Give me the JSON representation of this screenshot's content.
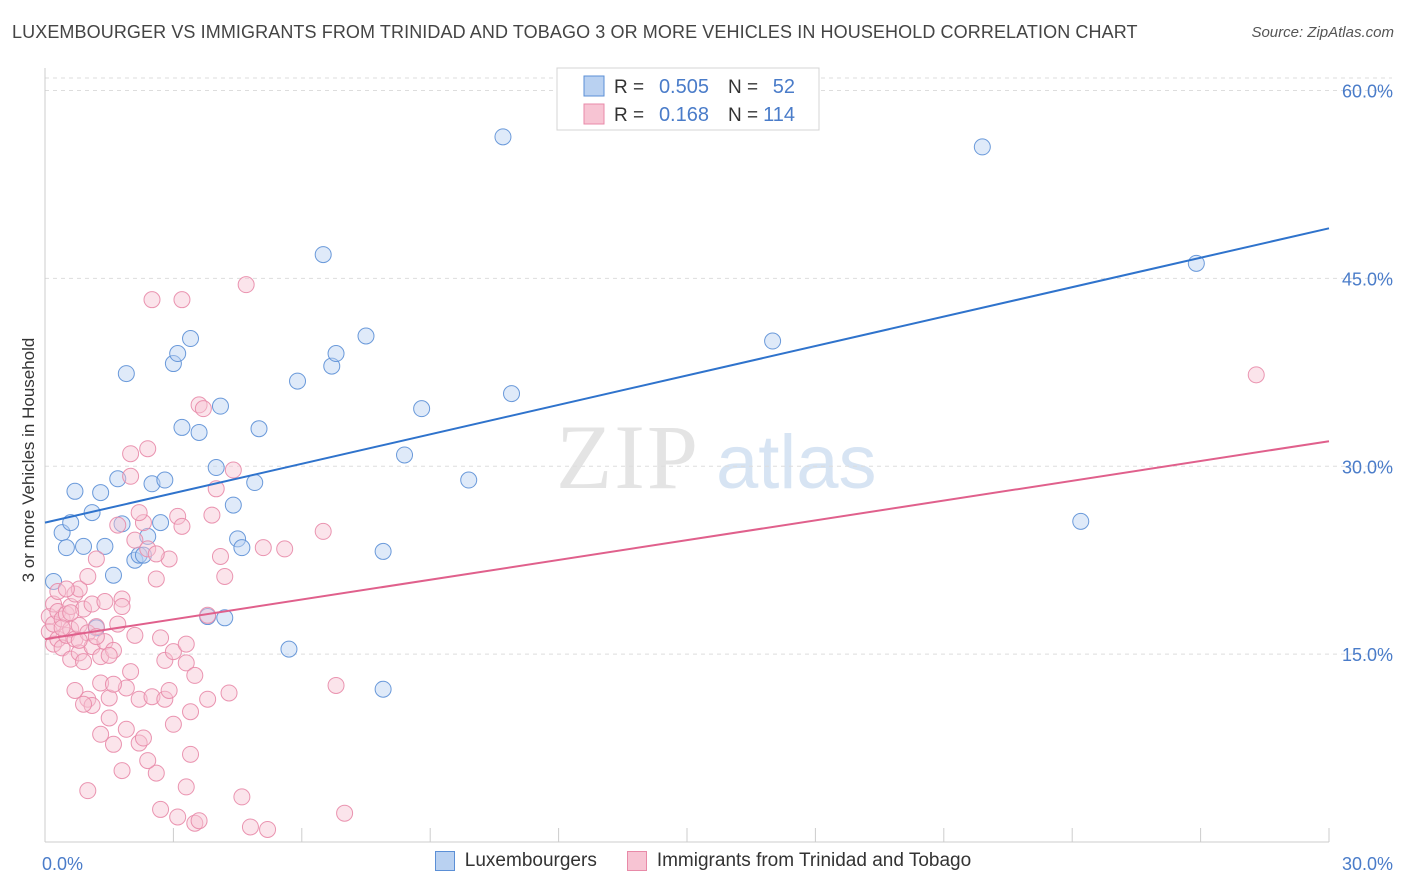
{
  "header": {
    "title": "LUXEMBOURGER VS IMMIGRANTS FROM TRINIDAD AND TOBAGO 3 OR MORE VEHICLES IN HOUSEHOLD CORRELATION CHART",
    "source": "Source: ZipAtlas.com"
  },
  "watermark": {
    "zip": "ZIP",
    "atlas": "atlas"
  },
  "legend_box": {
    "rows": [
      {
        "r_label": "R =",
        "r_value": "0.505",
        "n_label": "N =",
        "n_value": "52"
      },
      {
        "r_label": "R =",
        "r_value": "0.168",
        "n_label": "N =",
        "n_value": "114"
      }
    ]
  },
  "colors": {
    "blue": "#5b8fd6",
    "blue_fill": "#b9d1f1",
    "blue_line": "#2f73cc",
    "pink": "#e88aa8",
    "pink_fill": "#f7c4d3",
    "pink_line": "#e0608c",
    "axis_text": "#4a7cc9",
    "grid": "#dddddd"
  },
  "chart_data": {
    "type": "scatter",
    "ylabel": "3 or more Vehicles in Household",
    "xlim": [
      0,
      30
    ],
    "ylim": [
      0,
      61
    ],
    "x_tick_labels": [
      {
        "value": 0,
        "label": "0.0%"
      },
      {
        "value": 30,
        "label": "30.0%"
      }
    ],
    "y_tick_labels": [
      {
        "value": 15,
        "label": "15.0%"
      },
      {
        "value": 30,
        "label": "30.0%"
      },
      {
        "value": 45,
        "label": "45.0%"
      },
      {
        "value": 60,
        "label": "60.0%"
      }
    ],
    "x_minor_ticks": [
      0,
      3,
      6,
      9,
      12,
      15,
      18,
      21,
      24,
      27,
      30
    ],
    "grid": true,
    "legend": "bottom",
    "series": [
      {
        "name": "Luxembourgers",
        "r": 0.505,
        "n": 52,
        "trend": {
          "x": [
            0,
            30
          ],
          "y": [
            25.5,
            49.0
          ]
        },
        "points": [
          [
            0.2,
            20.8
          ],
          [
            0.4,
            24.7
          ],
          [
            0.5,
            23.5
          ],
          [
            0.6,
            25.5
          ],
          [
            0.7,
            28.0
          ],
          [
            0.9,
            23.6
          ],
          [
            1.1,
            26.3
          ],
          [
            1.3,
            27.9
          ],
          [
            1.4,
            23.6
          ],
          [
            1.6,
            21.3
          ],
          [
            1.7,
            29.0
          ],
          [
            1.8,
            25.4
          ],
          [
            1.9,
            37.4
          ],
          [
            2.1,
            22.5
          ],
          [
            2.2,
            22.9
          ],
          [
            2.4,
            24.4
          ],
          [
            2.5,
            28.6
          ],
          [
            2.7,
            25.5
          ],
          [
            2.8,
            28.9
          ],
          [
            3.0,
            38.2
          ],
          [
            3.1,
            39.0
          ],
          [
            3.2,
            33.1
          ],
          [
            3.4,
            40.2
          ],
          [
            3.6,
            32.7
          ],
          [
            3.8,
            18.0
          ],
          [
            4.0,
            29.9
          ],
          [
            4.1,
            34.8
          ],
          [
            4.2,
            17.9
          ],
          [
            4.4,
            26.9
          ],
          [
            4.5,
            24.2
          ],
          [
            4.6,
            23.5
          ],
          [
            4.9,
            28.7
          ],
          [
            5.0,
            33.0
          ],
          [
            5.7,
            15.4
          ],
          [
            5.9,
            36.8
          ],
          [
            6.5,
            46.9
          ],
          [
            6.7,
            38.0
          ],
          [
            6.8,
            39.0
          ],
          [
            7.5,
            40.4
          ],
          [
            7.9,
            23.2
          ],
          [
            7.9,
            12.2
          ],
          [
            8.4,
            30.9
          ],
          [
            8.8,
            34.6
          ],
          [
            9.9,
            28.9
          ],
          [
            10.7,
            56.3
          ],
          [
            10.9,
            35.8
          ],
          [
            17.0,
            40.0
          ],
          [
            21.9,
            55.5
          ],
          [
            24.2,
            25.6
          ],
          [
            26.9,
            46.2
          ],
          [
            1.2,
            17.1
          ],
          [
            2.3,
            22.9
          ]
        ]
      },
      {
        "name": "Immigrants from Trinidad and Tobago",
        "r": 0.168,
        "n": 114,
        "trend": {
          "x": [
            0,
            30
          ],
          "y": [
            16.2,
            32.0
          ]
        },
        "points": [
          [
            0.1,
            18.0
          ],
          [
            0.1,
            16.8
          ],
          [
            0.2,
            19.0
          ],
          [
            0.2,
            17.4
          ],
          [
            0.2,
            15.8
          ],
          [
            0.3,
            18.4
          ],
          [
            0.3,
            16.2
          ],
          [
            0.3,
            20.0
          ],
          [
            0.4,
            17.8
          ],
          [
            0.4,
            15.5
          ],
          [
            0.5,
            18.2
          ],
          [
            0.5,
            16.5
          ],
          [
            0.6,
            17.0
          ],
          [
            0.6,
            18.8
          ],
          [
            0.6,
            14.6
          ],
          [
            0.7,
            16.2
          ],
          [
            0.7,
            19.8
          ],
          [
            0.8,
            17.3
          ],
          [
            0.8,
            15.1
          ],
          [
            0.8,
            20.2
          ],
          [
            0.9,
            18.6
          ],
          [
            0.9,
            14.4
          ],
          [
            1.0,
            16.7
          ],
          [
            1.0,
            21.2
          ],
          [
            1.0,
            11.4
          ],
          [
            1.1,
            19.0
          ],
          [
            1.1,
            15.6
          ],
          [
            1.1,
            10.9
          ],
          [
            1.2,
            17.2
          ],
          [
            1.2,
            22.6
          ],
          [
            1.3,
            12.7
          ],
          [
            1.3,
            14.8
          ],
          [
            1.4,
            16.0
          ],
          [
            1.4,
            19.2
          ],
          [
            1.5,
            11.5
          ],
          [
            1.5,
            9.9
          ],
          [
            1.6,
            15.3
          ],
          [
            1.6,
            7.8
          ],
          [
            1.7,
            25.3
          ],
          [
            1.7,
            17.4
          ],
          [
            1.8,
            19.4
          ],
          [
            1.8,
            5.7
          ],
          [
            1.9,
            12.3
          ],
          [
            1.9,
            9.0
          ],
          [
            2.0,
            29.2
          ],
          [
            2.0,
            31.0
          ],
          [
            2.1,
            24.1
          ],
          [
            2.1,
            16.5
          ],
          [
            2.2,
            11.4
          ],
          [
            2.2,
            7.9
          ],
          [
            2.3,
            25.5
          ],
          [
            2.3,
            8.3
          ],
          [
            2.4,
            31.4
          ],
          [
            2.4,
            23.4
          ],
          [
            2.5,
            43.3
          ],
          [
            2.5,
            11.6
          ],
          [
            2.6,
            21.0
          ],
          [
            2.6,
            5.5
          ],
          [
            2.7,
            16.3
          ],
          [
            2.7,
            2.6
          ],
          [
            2.8,
            14.5
          ],
          [
            2.8,
            11.4
          ],
          [
            2.9,
            22.6
          ],
          [
            3.0,
            15.2
          ],
          [
            3.1,
            26.0
          ],
          [
            3.1,
            2.0
          ],
          [
            3.2,
            43.3
          ],
          [
            3.2,
            25.2
          ],
          [
            3.3,
            14.3
          ],
          [
            3.3,
            15.8
          ],
          [
            3.4,
            10.4
          ],
          [
            3.4,
            7.0
          ],
          [
            3.5,
            13.3
          ],
          [
            3.5,
            1.5
          ],
          [
            3.6,
            34.9
          ],
          [
            3.7,
            34.6
          ],
          [
            3.8,
            11.4
          ],
          [
            3.9,
            26.1
          ],
          [
            4.0,
            28.2
          ],
          [
            4.1,
            22.8
          ],
          [
            4.2,
            21.2
          ],
          [
            4.3,
            11.9
          ],
          [
            4.4,
            29.7
          ],
          [
            4.6,
            3.6
          ],
          [
            4.7,
            44.5
          ],
          [
            4.8,
            1.2
          ],
          [
            5.1,
            23.5
          ],
          [
            5.2,
            1.0
          ],
          [
            5.6,
            23.4
          ],
          [
            6.5,
            24.8
          ],
          [
            6.8,
            12.5
          ],
          [
            7.0,
            2.3
          ],
          [
            0.5,
            20.2
          ],
          [
            0.9,
            11.0
          ],
          [
            1.3,
            8.6
          ],
          [
            1.5,
            14.9
          ],
          [
            1.8,
            18.8
          ],
          [
            2.0,
            13.6
          ],
          [
            2.2,
            26.3
          ],
          [
            2.6,
            23.0
          ],
          [
            2.9,
            12.1
          ],
          [
            3.0,
            9.4
          ],
          [
            3.3,
            4.4
          ],
          [
            3.6,
            1.7
          ],
          [
            1.0,
            4.1
          ],
          [
            0.7,
            12.1
          ],
          [
            1.2,
            16.4
          ],
          [
            2.4,
            6.5
          ],
          [
            28.3,
            37.3
          ],
          [
            3.8,
            18.1
          ],
          [
            0.4,
            17.1
          ],
          [
            0.6,
            18.3
          ],
          [
            0.8,
            16.1
          ],
          [
            1.6,
            12.6
          ]
        ]
      }
    ]
  }
}
